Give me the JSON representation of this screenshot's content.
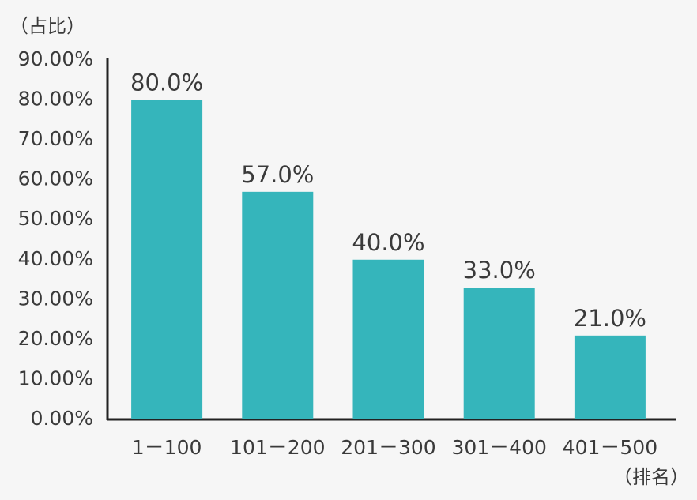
{
  "chart_data": {
    "type": "bar",
    "y_label": "（占比）",
    "x_label": "（排名）",
    "categories": [
      "1－100",
      "101－200",
      "201－300",
      "301－400",
      "401－500"
    ],
    "values": [
      80,
      57,
      40,
      33,
      21
    ],
    "value_labels": [
      "80.0%",
      "57.0%",
      "40.0%",
      "33.0%",
      "21.0%"
    ],
    "color": "#35b5bb",
    "ylim": [
      0,
      90
    ],
    "yticks": [
      {
        "value": 0,
        "label": "0.00%"
      },
      {
        "value": 10,
        "label": "10.00%"
      },
      {
        "value": 20,
        "label": "20.00%"
      },
      {
        "value": 30,
        "label": "30.00%"
      },
      {
        "value": 40,
        "label": "40.00%"
      },
      {
        "value": 50,
        "label": "50.00%"
      },
      {
        "value": 60,
        "label": "60.00%"
      },
      {
        "value": 70,
        "label": "70.00%"
      },
      {
        "value": 80,
        "label": "80.00%"
      },
      {
        "value": 90,
        "label": "90.00%"
      }
    ]
  }
}
